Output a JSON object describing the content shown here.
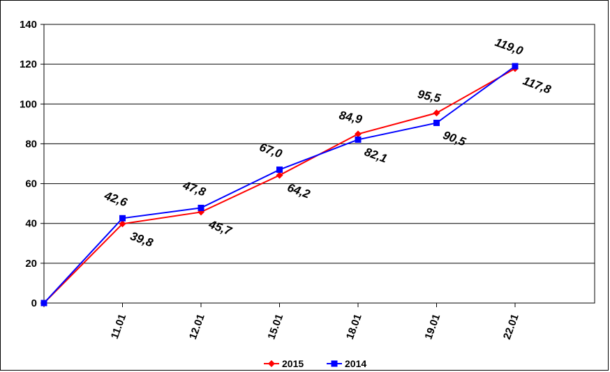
{
  "chart_data": {
    "type": "line",
    "title": "",
    "xlabel": "",
    "ylabel": "",
    "categories": [
      "",
      "11.01",
      "12.01",
      "15.01",
      "18.01",
      "19.01",
      "22.01"
    ],
    "y_ticks": [
      "0",
      "20",
      "40",
      "60",
      "80",
      "100",
      "120",
      "140"
    ],
    "ylim": [
      0,
      140
    ],
    "grid": true,
    "legend_position": "bottom",
    "series": [
      {
        "name": "2015",
        "color": "#ff0000",
        "marker": "diamond",
        "values": [
          0,
          39.8,
          45.7,
          64.2,
          84.9,
          95.5,
          117.8
        ],
        "labels": [
          "",
          "39,8",
          "45,7",
          "64,2",
          "84,9",
          "95,5",
          "117,8"
        ]
      },
      {
        "name": "2014",
        "color": "#0000ff",
        "marker": "square",
        "values": [
          0,
          42.6,
          47.8,
          67.0,
          82.1,
          90.5,
          119.0
        ],
        "labels": [
          "",
          "42,6",
          "47,8",
          "67,0",
          "82,1",
          "90,5",
          "119,0"
        ]
      }
    ]
  }
}
